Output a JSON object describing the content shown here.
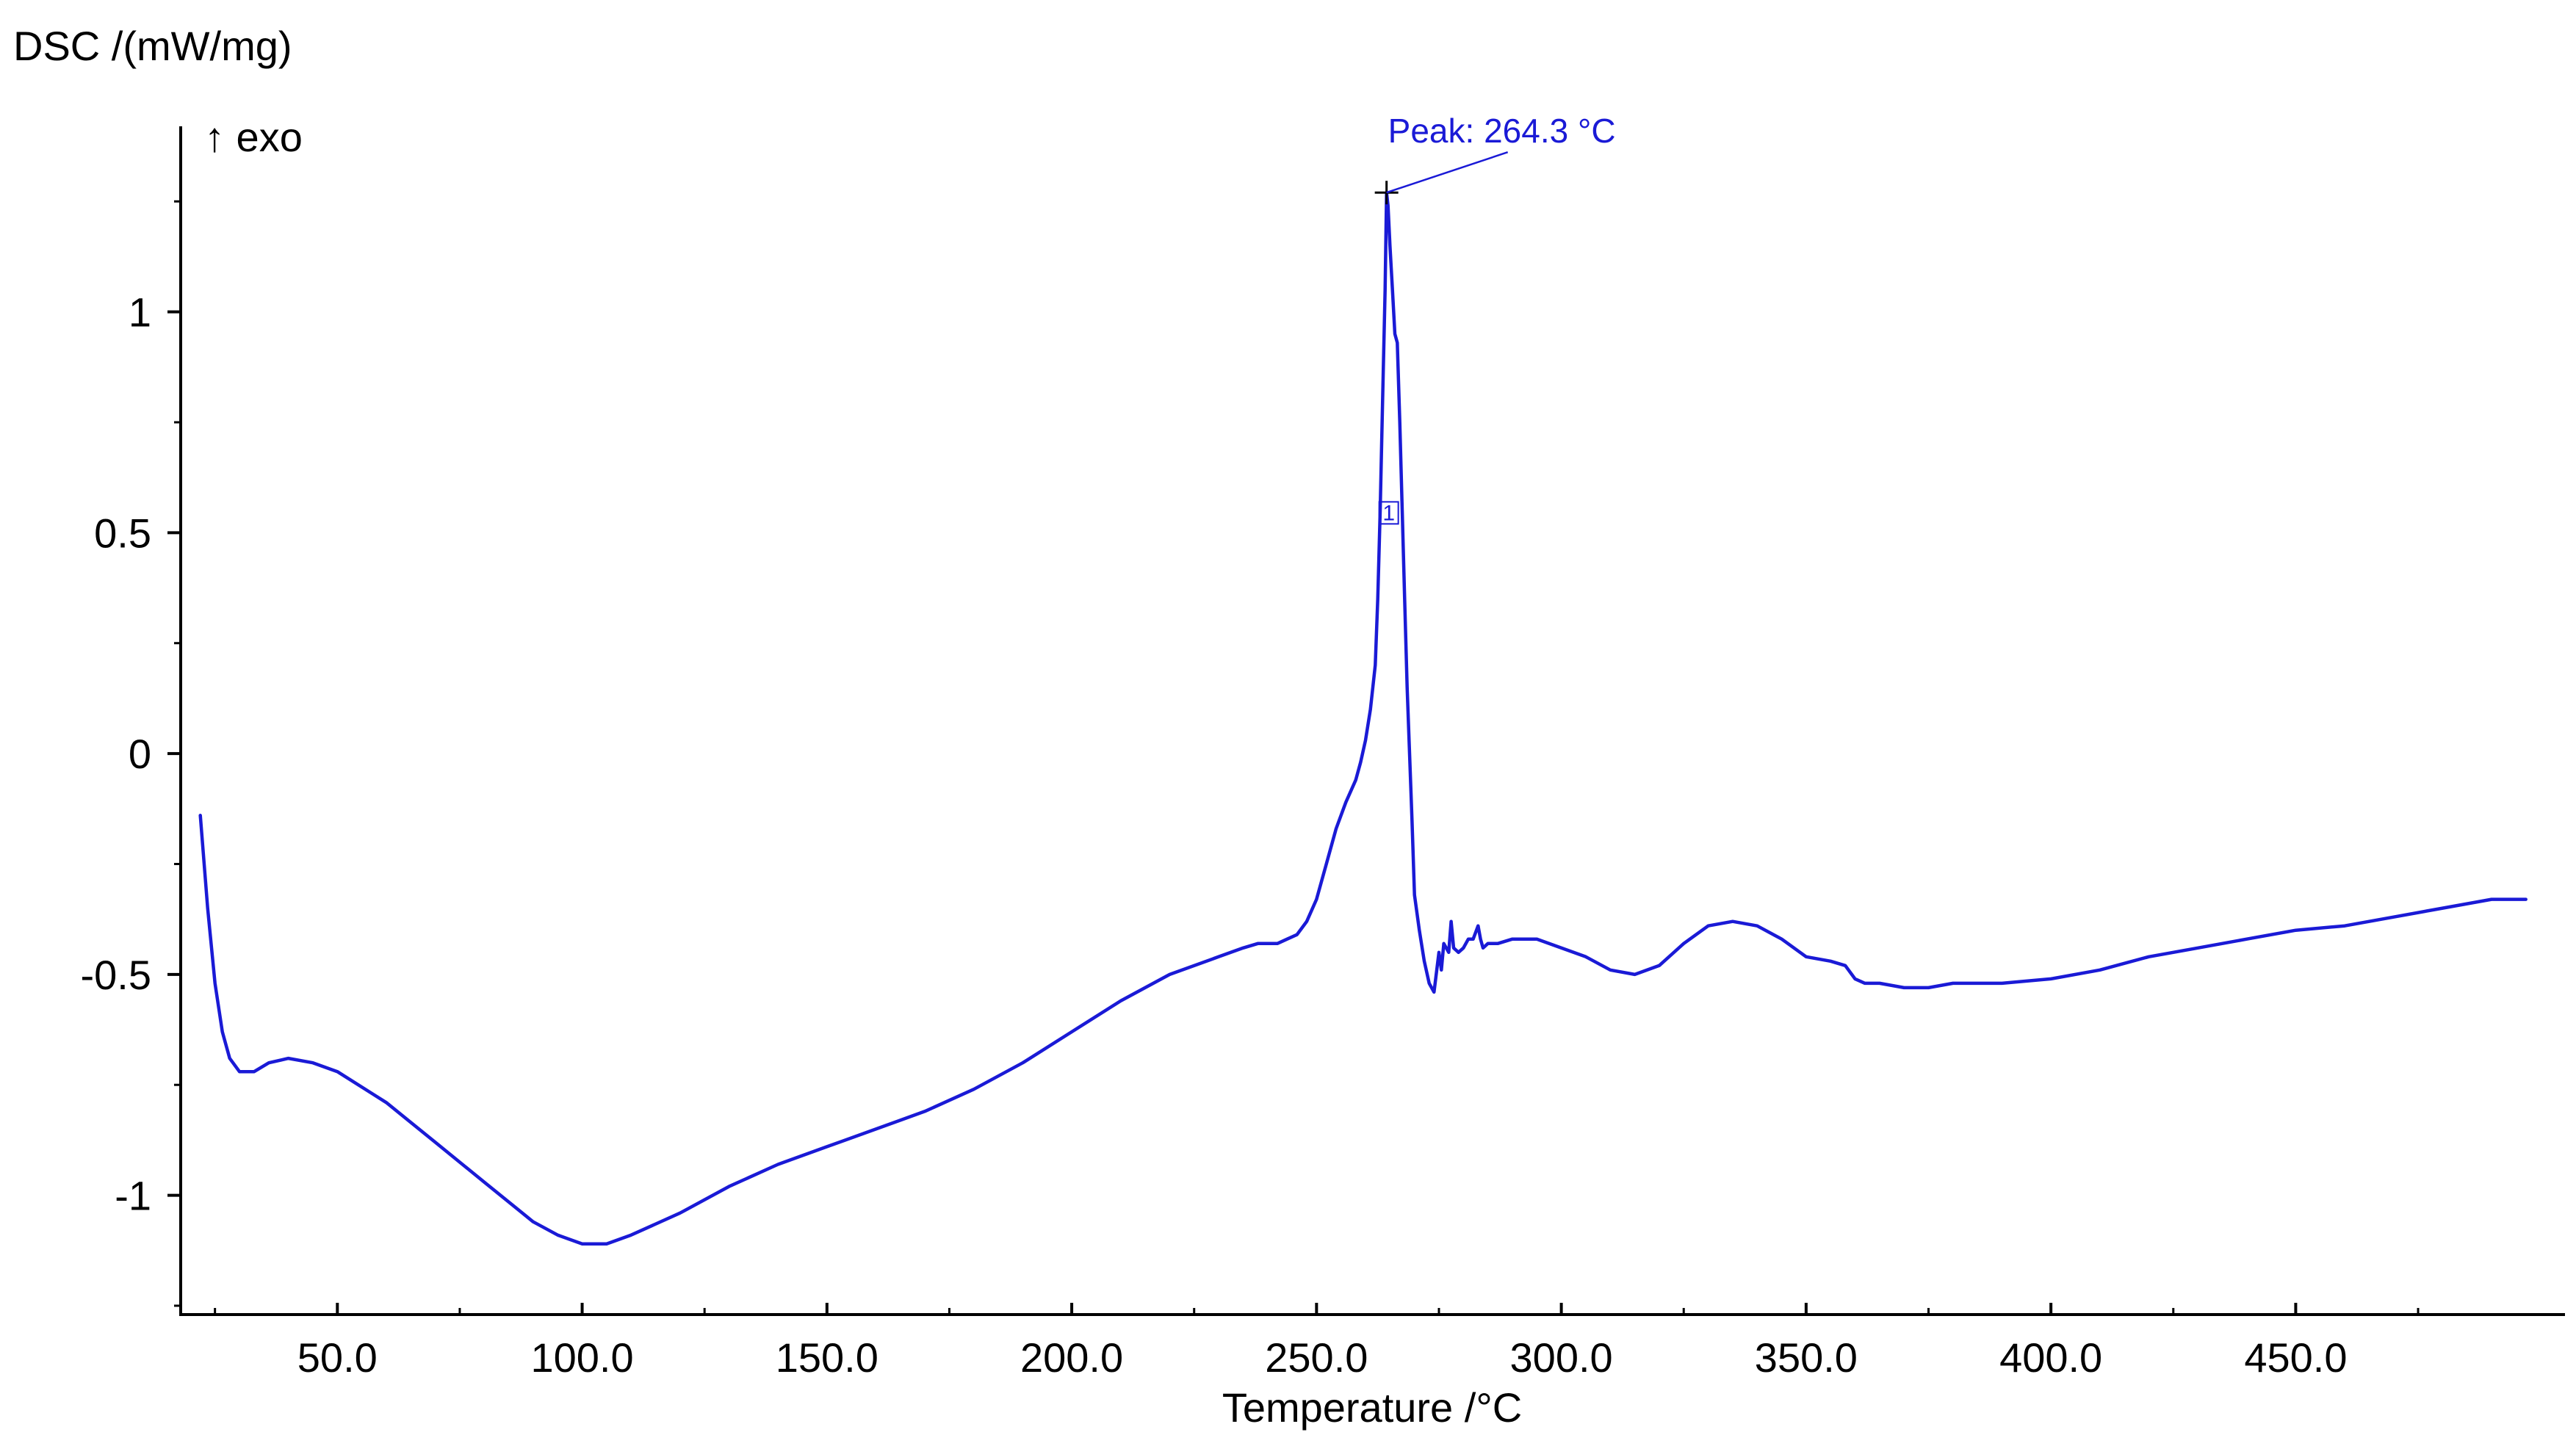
{
  "chart_data": {
    "type": "line",
    "title": "",
    "xlabel": "Temperature /°C",
    "ylabel": "DSC /(mW/mg)",
    "direction_label": "↑ exo",
    "xlim": [
      18,
      505
    ],
    "ylim": [
      -1.27,
      1.42
    ],
    "x_ticks": [
      {
        "value": 50,
        "label": "50.0"
      },
      {
        "value": 100,
        "label": "100.0"
      },
      {
        "value": 150,
        "label": "150.0"
      },
      {
        "value": 200,
        "label": "200.0"
      },
      {
        "value": 250,
        "label": "250.0"
      },
      {
        "value": 300,
        "label": "300.0"
      },
      {
        "value": 350,
        "label": "350.0"
      },
      {
        "value": 400,
        "label": "400.0"
      },
      {
        "value": 450,
        "label": "450.0"
      }
    ],
    "y_ticks": [
      {
        "value": 1,
        "label": "1"
      },
      {
        "value": 0.5,
        "label": "0.5"
      },
      {
        "value": 0,
        "label": "0"
      },
      {
        "value": -0.5,
        "label": "-0.5"
      },
      {
        "value": -1,
        "label": "-1"
      }
    ],
    "grid": false,
    "line_color": "#1a1ad6",
    "annotation": {
      "text": "Peak: 264.3 °C",
      "x": 264.3,
      "y": 1.27,
      "color": "#1a1ad6"
    },
    "marker_label": "1",
    "series": [
      {
        "x": [
          22,
          23.5,
          25,
          26.5,
          28,
          30,
          33,
          36,
          40,
          45,
          50,
          60,
          70,
          80,
          90,
          95,
          100,
          105,
          110,
          120,
          130,
          140,
          150,
          160,
          170,
          180,
          190,
          200,
          210,
          220,
          230,
          235,
          238,
          240,
          242,
          244,
          246,
          248,
          250,
          252,
          254,
          256,
          258,
          259,
          260,
          261,
          262,
          262.5,
          263,
          263.5,
          264,
          264.3,
          264.6,
          265,
          265.5,
          266,
          266.5,
          267,
          267.5,
          268,
          268.5,
          269,
          269.5,
          270,
          271,
          272,
          273,
          274,
          275,
          275.5,
          276,
          277,
          277.5,
          278,
          279,
          280,
          281,
          282,
          283,
          283.5,
          284,
          285,
          287,
          290,
          295,
          300,
          305,
          310,
          315,
          320,
          325,
          330,
          335,
          340,
          345,
          350,
          355,
          358,
          360,
          362,
          365,
          370,
          375,
          380,
          390,
          400,
          410,
          420,
          430,
          440,
          450,
          460,
          470,
          480,
          490,
          497
        ],
        "y": [
          -0.14,
          -0.35,
          -0.52,
          -0.63,
          -0.69,
          -0.72,
          -0.72,
          -0.7,
          -0.69,
          -0.7,
          -0.72,
          -0.79,
          -0.88,
          -0.97,
          -1.06,
          -1.09,
          -1.11,
          -1.11,
          -1.09,
          -1.04,
          -0.98,
          -0.93,
          -0.89,
          -0.85,
          -0.81,
          -0.76,
          -0.7,
          -0.63,
          -0.56,
          -0.5,
          -0.46,
          -0.44,
          -0.43,
          -0.43,
          -0.43,
          -0.42,
          -0.41,
          -0.38,
          -0.33,
          -0.25,
          -0.17,
          -0.11,
          -0.06,
          -0.02,
          0.03,
          0.1,
          0.2,
          0.35,
          0.55,
          0.8,
          1.05,
          1.27,
          1.24,
          1.15,
          1.05,
          0.95,
          0.93,
          0.75,
          0.55,
          0.35,
          0.15,
          0.0,
          -0.15,
          -0.32,
          -0.4,
          -0.47,
          -0.52,
          -0.54,
          -0.45,
          -0.49,
          -0.43,
          -0.45,
          -0.38,
          -0.44,
          -0.45,
          -0.44,
          -0.42,
          -0.42,
          -0.39,
          -0.42,
          -0.44,
          -0.43,
          -0.43,
          -0.42,
          -0.42,
          -0.44,
          -0.46,
          -0.49,
          -0.5,
          -0.48,
          -0.43,
          -0.39,
          -0.38,
          -0.39,
          -0.42,
          -0.46,
          -0.47,
          -0.48,
          -0.51,
          -0.52,
          -0.52,
          -0.53,
          -0.53,
          -0.52,
          -0.52,
          -0.51,
          -0.49,
          -0.46,
          -0.44,
          -0.42,
          -0.4,
          -0.39,
          -0.37,
          -0.35,
          -0.33,
          -0.33
        ]
      }
    ]
  }
}
